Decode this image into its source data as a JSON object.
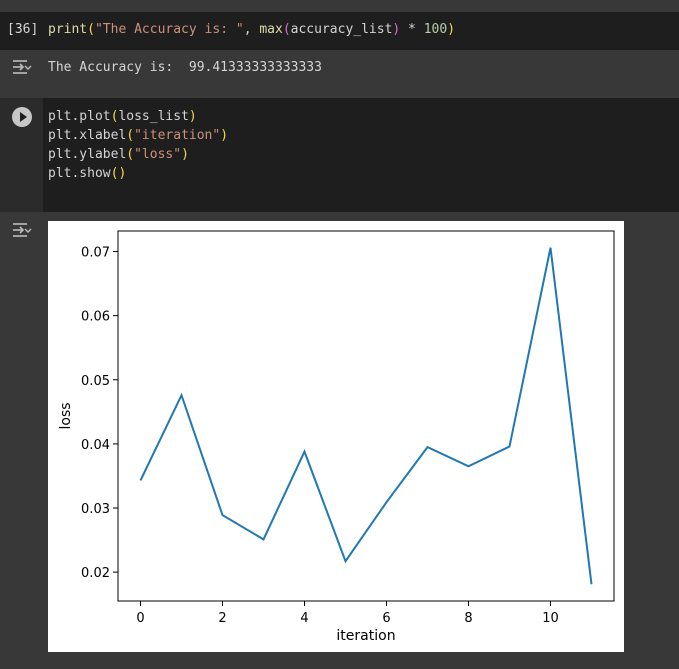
{
  "cell1": {
    "exec_count": "[36]",
    "code": {
      "fn": "print",
      "str": "\"The Accuracy is: \"",
      "comma": ", ",
      "fn2": "max",
      "arg": "accuracy_list",
      "op": " * ",
      "num": "100"
    },
    "output_icon": "output-toggle-icon",
    "output": "The Accuracy is:  99.41333333333333"
  },
  "cell2": {
    "run_icon": "run-play-icon",
    "lines": [
      {
        "pre": "plt.plot",
        "arg": "loss_list",
        "str": ""
      },
      {
        "pre": "plt.xlabel",
        "arg": "",
        "str": "\"iteration\""
      },
      {
        "pre": "plt.ylabel",
        "arg": "",
        "str": "\"loss\""
      },
      {
        "pre": "plt.show",
        "arg": "",
        "str": ""
      }
    ],
    "output_icon": "output-toggle-icon"
  },
  "chart_data": {
    "type": "line",
    "x": [
      0,
      1,
      2,
      3,
      4,
      5,
      6,
      7,
      8,
      9,
      10,
      11
    ],
    "series": [
      {
        "values": [
          0.0343,
          0.0476,
          0.0289,
          0.0251,
          0.0388,
          0.0217,
          0.0309,
          0.0395,
          0.0365,
          0.0396,
          0.0706,
          0.0181
        ]
      }
    ],
    "title": "",
    "xlabel": "iteration",
    "ylabel": "loss",
    "xlim": [
      -0.55,
      11.55
    ],
    "ylim": [
      0.0155,
      0.0732
    ],
    "xticks": [
      0,
      2,
      4,
      6,
      8,
      10
    ],
    "yticks": [
      0.02,
      0.03,
      0.04,
      0.05,
      0.06,
      0.07
    ],
    "ytick_labels": [
      "0.02",
      "0.03",
      "0.04",
      "0.05",
      "0.06",
      "0.07"
    ],
    "xtick_labels": [
      "0",
      "2",
      "4",
      "6",
      "8",
      "10"
    ],
    "grid": false,
    "line_color": "#1f77b4"
  }
}
